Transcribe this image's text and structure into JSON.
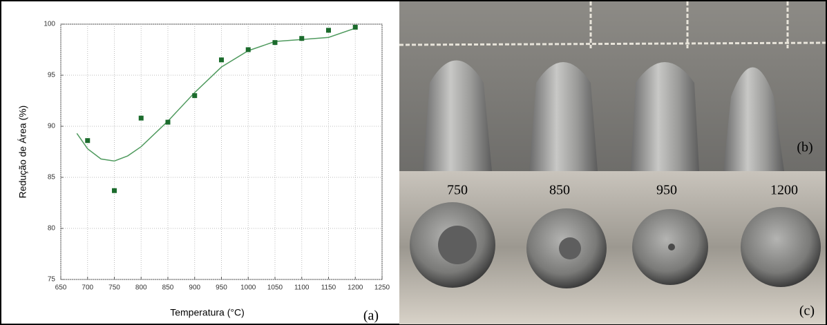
{
  "chart_data": {
    "type": "scatter",
    "x_label": "Temperatura (°C)",
    "y_label": "Redução de Área (%)",
    "panel_label": "(a)",
    "x": [
      700,
      750,
      800,
      850,
      900,
      950,
      1000,
      1050,
      1100,
      1150,
      1200
    ],
    "values": [
      88.6,
      83.7,
      90.8,
      90.4,
      93.0,
      96.5,
      97.5,
      98.2,
      98.6,
      99.4,
      99.7
    ],
    "color": "#1b6b2c",
    "fit": {
      "x": [
        680,
        700,
        725,
        750,
        775,
        800,
        850,
        900,
        950,
        1000,
        1050,
        1100,
        1150,
        1200
      ],
      "values": [
        89.3,
        87.8,
        86.8,
        86.6,
        87.1,
        88.0,
        90.5,
        93.3,
        95.8,
        97.4,
        98.3,
        98.5,
        98.7,
        99.6
      ],
      "color": "#4f9a5e"
    },
    "xlim": [
      650,
      1250
    ],
    "xticks": [
      650,
      700,
      750,
      800,
      850,
      900,
      950,
      1000,
      1050,
      1100,
      1150,
      1200,
      1250
    ],
    "ylim": [
      75,
      100
    ],
    "yticks": [
      75,
      80,
      85,
      90,
      95,
      100
    ],
    "grid": true
  },
  "photos": {
    "top_label": "(b)",
    "temperatures": [
      "750",
      "850",
      "950",
      "1200"
    ],
    "bottom_label": "(c)"
  }
}
